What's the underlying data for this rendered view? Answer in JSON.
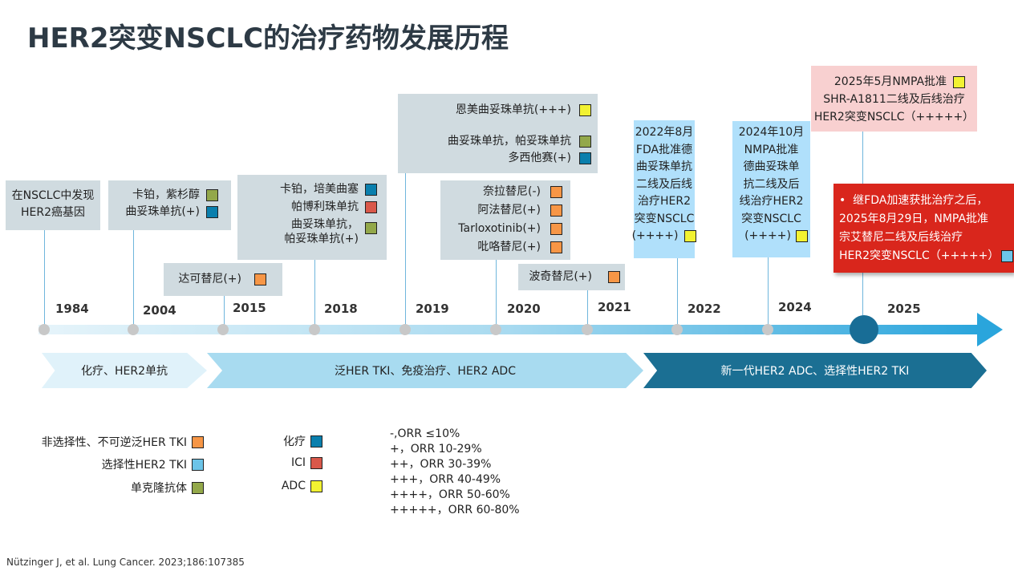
{
  "title": "HER2突变NSCLC的治疗药物发展历程",
  "colors": {
    "non_selective_tki": "#f79646",
    "selective_tki": "#6cc4e8",
    "mab": "#93a84a",
    "chemo": "#0a7fad",
    "ici": "#d9584a",
    "adc": "#f2f232"
  },
  "boxes": {
    "b1": [
      "在NSCLC中发现",
      "HER2癌基因"
    ],
    "b2": [
      "卡铂，紫杉醇",
      "曲妥珠单抗(+)"
    ],
    "b3": [
      "达可替尼(+)"
    ],
    "b4": [
      "卡铂，培美曲塞",
      "帕博利珠单抗",
      "曲妥珠单抗，",
      "帕妥珠单抗(+)"
    ],
    "b5": [
      "恩美曲妥珠单抗(+++)",
      "曲妥珠单抗，帕妥珠单抗",
      "多西他赛(+)"
    ],
    "b6": [
      "奈拉替尼(-)",
      "阿法替尼(+)",
      "Tarloxotinib(+)",
      "吡咯替尼(+)"
    ],
    "b7": [
      "波奇替尼(+)"
    ],
    "b8": [
      "2022年8月",
      "FDA批准德",
      "曲妥珠单抗",
      "二线及后线",
      "治疗HER2",
      "突变NSCLC",
      "(++++)"
    ],
    "b9": [
      "2024年10月",
      "NMPA批准",
      "德曲妥珠单",
      "抗二线及后",
      "线治疗HER2",
      "突变NSCLC",
      "(++++)"
    ],
    "b10": [
      "2025年5月NMPA批准",
      "SHR-A1811二线及后线治疗",
      "HER2突变NSCLC（+++++）"
    ],
    "b11": [
      "继FDA加速获批治疗之后，",
      "2025年8月29日，NMPA批准",
      "宗艾替尼二线及后线治疗",
      "HER2突变NSCLC（+++++）"
    ]
  },
  "years": [
    "1984",
    "2004",
    "2015",
    "2018",
    "2019",
    "2020",
    "2021",
    "2022",
    "2024",
    "2025"
  ],
  "phases": [
    "化疗、HER2单抗",
    "泛HER TKI、免疫治疗、HER2 ADC",
    "新一代HER2 ADC、选择性HER2 TKI"
  ],
  "legend": {
    "non_selective": "非选择性、不可逆泛HER TKI",
    "selective": "选择性HER2 TKI",
    "mab": "单克隆抗体",
    "chemo": "化疗",
    "ici": "ICI",
    "adc": "ADC"
  },
  "orr": [
    "-,ORR ≤10%",
    "+，ORR 10-29%",
    "++，ORR 30-39%",
    "+++，ORR 40-49%",
    "++++，ORR 50-60%",
    "+++++，ORR 60-80%"
  ],
  "citation": "Nützinger J, et al. Lung Cancer. 2023;186:107385"
}
